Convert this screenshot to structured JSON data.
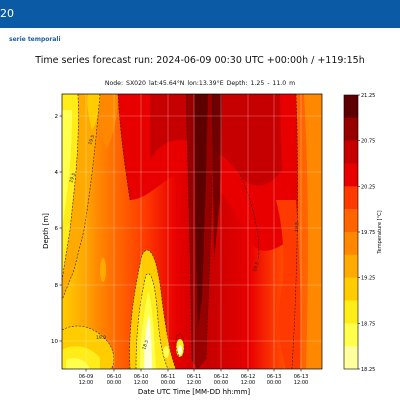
{
  "header": {
    "title": "20"
  },
  "nav": {
    "link": "serie temporali"
  },
  "chart_data": {
    "type": "heatmap",
    "title": "Time series forecast run: 2024-06-09  00:30 UTC    +00:00h / +119:15h",
    "subtitle": "Node: SX020     lat:45.64°N  lon:13.39°E      Depth: 1.25 - 11.0 m",
    "xlabel": "Date UTC Time [MM-DD hh:mm]",
    "ylabel": "Depth [m]",
    "colorbar_label": "Temperature [°C]",
    "x_ticks": [
      {
        "l1": "06-09",
        "l2": "12:00"
      },
      {
        "l1": "06-10",
        "l2": "00:00"
      },
      {
        "l1": "06-10",
        "l2": "12:00"
      },
      {
        "l1": "06-11",
        "l2": "00:00"
      },
      {
        "l1": "06-11",
        "l2": "12:00"
      },
      {
        "l1": "06-12",
        "l2": "00:00"
      },
      {
        "l1": "06-12",
        "l2": "12:00"
      },
      {
        "l1": "06-13",
        "l2": "00:00"
      },
      {
        "l1": "06-13",
        "l2": "12:00"
      }
    ],
    "y_ticks": [
      "2",
      "4",
      "6",
      "8",
      "10"
    ],
    "colorbar_ticks": [
      "21.25",
      "20.75",
      "20.25",
      "19.75",
      "19.25",
      "18.75",
      "18.25"
    ],
    "contour_labels": [
      "19.5",
      "19.5",
      "19.0",
      "19.5",
      "19.5",
      "18.5"
    ],
    "levels": [
      {
        "v": 18.25,
        "c": "#ffffe0"
      },
      {
        "v": 18.5,
        "c": "#ffff9e"
      },
      {
        "v": 18.75,
        "c": "#ffff4c"
      },
      {
        "v": 19.0,
        "c": "#ffec19"
      },
      {
        "v": 19.25,
        "c": "#ffcc00"
      },
      {
        "v": 19.5,
        "c": "#ffaa00"
      },
      {
        "v": 19.75,
        "c": "#ff8800"
      },
      {
        "v": 20.0,
        "c": "#ff6400"
      },
      {
        "v": 20.25,
        "c": "#ff3a00"
      },
      {
        "v": 20.5,
        "c": "#e80000"
      },
      {
        "v": 20.75,
        "c": "#c60000"
      },
      {
        "v": 21.0,
        "c": "#980000"
      },
      {
        "v": 21.25,
        "c": "#5e0000"
      }
    ]
  }
}
